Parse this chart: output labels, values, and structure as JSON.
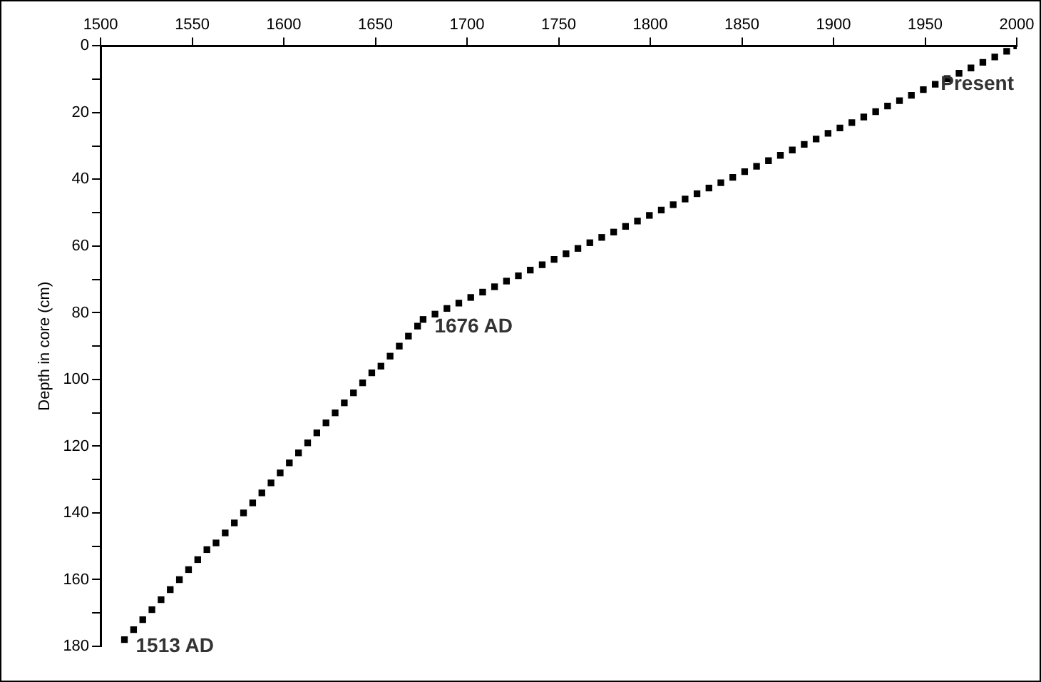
{
  "chart_data": {
    "type": "scatter",
    "ylabel": "Depth in core (cm)",
    "marker": "square",
    "color": "#000000",
    "x": [
      1513,
      1518,
      1523,
      1528,
      1533,
      1538,
      1543,
      1548,
      1553,
      1558,
      1563,
      1568,
      1573,
      1578,
      1583,
      1588,
      1593,
      1598,
      1603,
      1608,
      1613,
      1618,
      1623,
      1628,
      1633,
      1638,
      1643,
      1648,
      1653,
      1658,
      1663,
      1668,
      1673,
      1676,
      1682.5,
      1689,
      1695.5,
      1702,
      1708.5,
      1715,
      1721.5,
      1728,
      1734.5,
      1741,
      1747.5,
      1754,
      1760.5,
      1767,
      1773.5,
      1780,
      1786.5,
      1793,
      1799.5,
      1806,
      1812.5,
      1819,
      1825.5,
      1832,
      1838.5,
      1845,
      1851.5,
      1858,
      1864.5,
      1871,
      1877.5,
      1884,
      1890.5,
      1897,
      1903.5,
      1910,
      1916.5,
      1923,
      1929.5,
      1936,
      1942.5,
      1949,
      1955.5,
      1962,
      1968.5,
      1975,
      1981.5,
      1988,
      1994.5,
      2000
    ],
    "values": [
      178,
      175,
      172,
      169,
      166,
      163,
      160,
      157,
      154,
      151,
      149,
      146,
      143,
      140,
      137,
      134,
      131,
      128,
      125,
      122,
      119,
      116,
      113,
      110,
      107,
      104,
      101,
      98,
      96,
      93,
      90,
      87,
      84,
      82,
      80.4,
      78.7,
      77.1,
      75.4,
      73.8,
      72.2,
      70.5,
      68.9,
      67.2,
      65.6,
      64.0,
      62.3,
      60.7,
      59.0,
      57.4,
      55.8,
      54.1,
      52.5,
      50.8,
      49.2,
      47.6,
      45.9,
      44.3,
      42.6,
      41.0,
      39.4,
      37.7,
      36.1,
      34.4,
      32.8,
      31.2,
      29.5,
      27.9,
      26.2,
      24.6,
      23.0,
      21.3,
      19.7,
      18.0,
      16.4,
      14.8,
      13.1,
      11.5,
      9.8,
      8.2,
      6.6,
      4.9,
      3.3,
      1.6,
      0
    ],
    "xlim": [
      1500,
      2000
    ],
    "xticks": [
      1500,
      1550,
      1600,
      1650,
      1700,
      1750,
      1800,
      1850,
      1900,
      1950,
      2000
    ],
    "ylim": [
      180,
      0
    ],
    "yticks": [
      0,
      {
        "value": 10,
        "label": null
      },
      20,
      {
        "value": 30,
        "label": null
      },
      40,
      {
        "value": 50,
        "label": null
      },
      60,
      {
        "value": 70,
        "label": null
      },
      80,
      {
        "value": 90,
        "label": null
      },
      100,
      {
        "value": 110,
        "label": null
      },
      120,
      {
        "value": 130,
        "label": null
      },
      140,
      {
        "value": 150,
        "label": null
      },
      160,
      {
        "value": 170,
        "label": null
      },
      180
    ],
    "annotations": [
      {
        "text": "1513 AD",
        "x": 1513,
        "y": 178
      },
      {
        "text": "1676 AD",
        "x": 1676,
        "y": 82
      },
      {
        "text": "Present",
        "x": 2000,
        "y": 0
      }
    ]
  }
}
